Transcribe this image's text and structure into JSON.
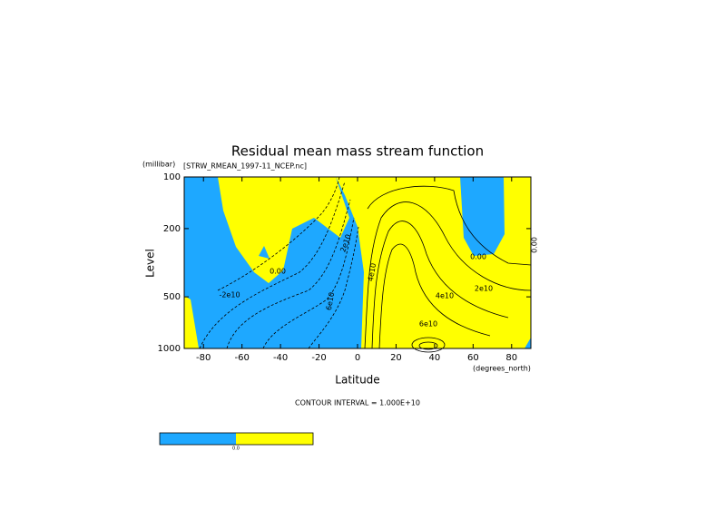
{
  "chart_data": {
    "type": "contour",
    "title": "Residual mean mass stream function",
    "subtitle": "[STRW_RMEAN_1997-11_NCEP.nc]",
    "x_label": "Latitude",
    "x_unit": "(degrees_north)",
    "y_label": "Level",
    "y_unit": "(millibar)",
    "xlim": [
      -90,
      90
    ],
    "xticks": [
      -80,
      -60,
      -40,
      -20,
      0,
      20,
      40,
      60,
      80
    ],
    "ylim": [
      100,
      1000
    ],
    "yticks": [
      100,
      200,
      500,
      1000
    ],
    "y_log": true,
    "y_inverted": true,
    "note": "CONTOUR INTERVAL = 1.000E+10",
    "negative_color": "#1ea8ff",
    "positive_color": "#ffff00",
    "colorbar_labels": [
      "0.0"
    ],
    "contour_labels": [
      "0.00",
      "0.00",
      "0.00",
      "-2e10",
      "6e10",
      "4e10",
      "2e10",
      "6e10",
      "2e10",
      "4e10"
    ]
  }
}
